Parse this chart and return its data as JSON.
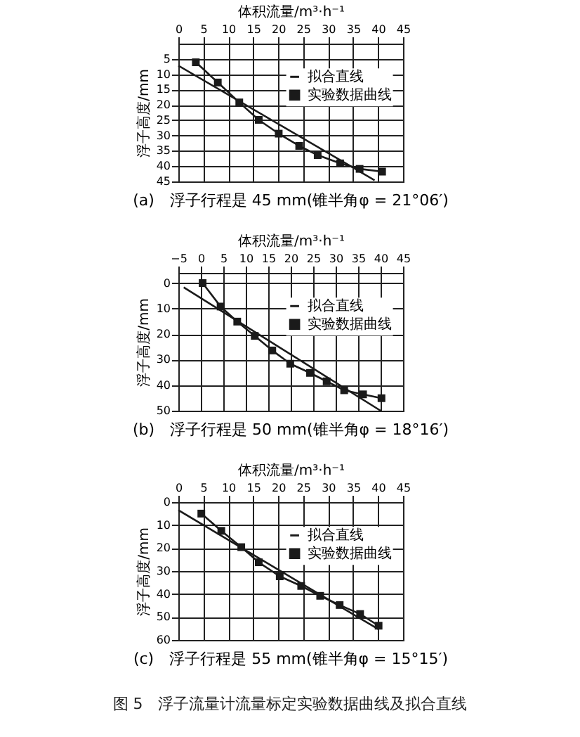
{
  "chart_data": [
    {
      "type": "line",
      "title": "(a)　浮子行程是 45 mm(锥半角φ = 21°06′)",
      "xlabel": "体积流量/m³·h⁻¹",
      "ylabel": "浮子高度/mm",
      "xlim": [
        0,
        45
      ],
      "ylim": [
        45,
        0
      ],
      "xticks": [
        0,
        5,
        10,
        15,
        20,
        25,
        30,
        35,
        40,
        45
      ],
      "yticks": [
        5,
        10,
        15,
        20,
        25,
        30,
        35,
        40,
        45
      ],
      "grid": true,
      "legend": "right",
      "line_style": "solid",
      "series": [
        {
          "name": "拟合直线",
          "color": "#1a1a1a",
          "marker": "none",
          "x": [
            0,
            39.3
          ],
          "values": [
            7.2,
            44.6
          ]
        },
        {
          "name": "实验数据曲线",
          "color": "#1a1a1a",
          "marker": "square",
          "x": [
            3.5,
            7.9,
            12.2,
            16.1,
            20.1,
            24.2,
            27.9,
            32.4,
            36.3,
            40.8
          ],
          "values": [
            6.1,
            12.7,
            19.2,
            24.9,
            29.4,
            33.4,
            36.4,
            39.1,
            40.9,
            41.8
          ]
        }
      ]
    },
    {
      "type": "line",
      "title": "(b)　浮子行程是 50 mm(锥半角φ = 18°16′)",
      "xlabel": "体积流量/m³·h⁻¹",
      "ylabel": "浮子高度/mm",
      "xlim": [
        -5,
        45
      ],
      "ylim": [
        50,
        -4
      ],
      "xticks": [
        -5,
        0,
        5,
        10,
        15,
        20,
        25,
        30,
        35,
        40,
        45
      ],
      "yticks": [
        0,
        10,
        20,
        30,
        40,
        50
      ],
      "grid": true,
      "legend": "right",
      "line_style": "solid",
      "series": [
        {
          "name": "拟合直线",
          "color": "#1a1a1a",
          "marker": "none",
          "x": [
            -3.8,
            40
          ],
          "values": [
            1.7,
            50
          ]
        },
        {
          "name": "实验数据曲线",
          "color": "#1a1a1a",
          "marker": "square",
          "x": [
            0.4,
            4.4,
            8.1,
            12.0,
            15.9,
            19.9,
            24.3,
            28.0,
            31.9,
            36.1,
            40.2
          ],
          "values": [
            0,
            9.2,
            15.1,
            20.7,
            26.4,
            31.6,
            35.2,
            38.5,
            42.0,
            43.6,
            45.1
          ]
        }
      ]
    },
    {
      "type": "line",
      "title": "(c)　浮子行程是 55 mm(锥半角φ = 15°15′)",
      "xlabel": "体积流量/m³·h⁻¹",
      "ylabel": "浮子高度/mm",
      "xlim": [
        0,
        45
      ],
      "ylim": [
        60,
        0
      ],
      "xticks": [
        0,
        5,
        10,
        15,
        20,
        25,
        30,
        35,
        40,
        45
      ],
      "yticks": [
        0,
        10,
        20,
        30,
        40,
        50,
        60
      ],
      "grid": true,
      "legend": "right",
      "line_style": "solid",
      "annotations": [
        "图 5　浮子流量计流量标定实验数据曲线及拟合直线"
      ],
      "series": [
        {
          "name": "拟合直线",
          "color": "#1a1a1a",
          "marker": "none",
          "x": [
            0,
            40.1
          ],
          "values": [
            3.5,
            55.4
          ]
        },
        {
          "name": "实验数据曲线",
          "color": "#1a1a1a",
          "marker": "square",
          "x": [
            4.6,
            8.6,
            12.6,
            16.1,
            20.3,
            24.6,
            28.4,
            32.3,
            36.4,
            40.1
          ],
          "values": [
            5.0,
            12.5,
            19.6,
            26.2,
            32.3,
            36.5,
            40.8,
            44.8,
            48.7,
            53.8
          ]
        }
      ]
    }
  ]
}
